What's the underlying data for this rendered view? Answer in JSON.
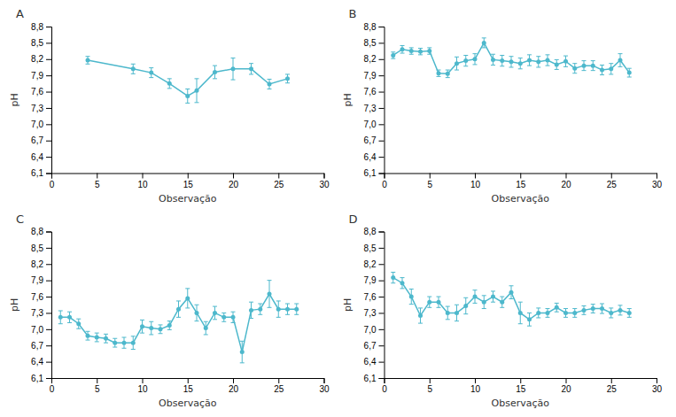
{
  "chart_data": [
    {
      "type": "line",
      "title": "A",
      "xlabel": "Observação",
      "ylabel": "pH",
      "color": "#4db8cc",
      "marker": "circle",
      "line_style": "solid",
      "grid": false,
      "xlim": [
        0,
        30
      ],
      "ylim": [
        6.1,
        8.8
      ],
      "xticks": [
        0,
        5,
        10,
        15,
        20,
        25,
        30
      ],
      "yticks": [
        {
          "value": 6.1,
          "label": "6,1"
        },
        {
          "value": 6.4,
          "label": "6,4"
        },
        {
          "value": 6.7,
          "label": "6,7"
        },
        {
          "value": 7.0,
          "label": "7,0"
        },
        {
          "value": 7.3,
          "label": "7,3"
        },
        {
          "value": 7.6,
          "label": "7,6"
        },
        {
          "value": 7.9,
          "label": "7,9"
        },
        {
          "value": 8.2,
          "label": "8,2"
        },
        {
          "value": 8.5,
          "label": "8,5"
        },
        {
          "value": 8.8,
          "label": "8,8"
        }
      ],
      "x": [
        4,
        9,
        11,
        13,
        15,
        16,
        18,
        20,
        22,
        24,
        26
      ],
      "values": [
        8.18,
        8.02,
        7.95,
        7.75,
        7.52,
        7.62,
        7.96,
        8.02,
        8.02,
        7.74,
        7.84
      ],
      "errors": [
        0.07,
        0.09,
        0.09,
        0.09,
        0.13,
        0.22,
        0.12,
        0.2,
        0.1,
        0.09,
        0.08
      ]
    },
    {
      "type": "line",
      "title": "B",
      "xlabel": "Observação",
      "ylabel": "pH",
      "color": "#4db8cc",
      "marker": "circle",
      "line_style": "solid",
      "grid": false,
      "xlim": [
        0,
        30
      ],
      "ylim": [
        6.1,
        8.8
      ],
      "xticks": [
        0,
        5,
        10,
        15,
        20,
        25,
        30
      ],
      "yticks": [
        {
          "value": 6.1,
          "label": "6,1"
        },
        {
          "value": 6.4,
          "label": "6,4"
        },
        {
          "value": 6.7,
          "label": "6,7"
        },
        {
          "value": 7.0,
          "label": "7,0"
        },
        {
          "value": 7.3,
          "label": "7,3"
        },
        {
          "value": 7.6,
          "label": "7,6"
        },
        {
          "value": 7.9,
          "label": "7,9"
        },
        {
          "value": 8.2,
          "label": "8,2"
        },
        {
          "value": 8.5,
          "label": "8,5"
        },
        {
          "value": 8.8,
          "label": "8,8"
        }
      ],
      "x": [
        1,
        2,
        3,
        4,
        5,
        6,
        7,
        8,
        9,
        10,
        11,
        12,
        13,
        14,
        15,
        16,
        17,
        18,
        19,
        20,
        21,
        22,
        23,
        24,
        25,
        26,
        27
      ],
      "values": [
        8.27,
        8.38,
        8.35,
        8.34,
        8.35,
        7.94,
        7.93,
        8.12,
        8.17,
        8.2,
        8.5,
        8.19,
        8.17,
        8.15,
        8.12,
        8.18,
        8.15,
        8.18,
        8.1,
        8.16,
        8.03,
        8.08,
        8.08,
        8.0,
        8.02,
        8.18,
        7.95
      ],
      "errors": [
        0.06,
        0.07,
        0.06,
        0.06,
        0.06,
        0.06,
        0.07,
        0.12,
        0.1,
        0.1,
        0.09,
        0.1,
        0.1,
        0.1,
        0.1,
        0.1,
        0.1,
        0.1,
        0.09,
        0.1,
        0.09,
        0.09,
        0.09,
        0.09,
        0.1,
        0.12,
        0.08
      ]
    },
    {
      "type": "line",
      "title": "C",
      "xlabel": "Observação",
      "ylabel": "pH",
      "color": "#4db8cc",
      "marker": "circle",
      "line_style": "solid",
      "grid": false,
      "xlim": [
        0,
        30
      ],
      "ylim": [
        6.1,
        8.8
      ],
      "xticks": [
        0,
        5,
        10,
        15,
        20,
        25,
        30
      ],
      "yticks": [
        {
          "value": 6.1,
          "label": "6,1"
        },
        {
          "value": 6.4,
          "label": "6,4"
        },
        {
          "value": 6.7,
          "label": "6,7"
        },
        {
          "value": 7.0,
          "label": "7,0"
        },
        {
          "value": 7.3,
          "label": "7,3"
        },
        {
          "value": 7.6,
          "label": "7,6"
        },
        {
          "value": 7.9,
          "label": "7,9"
        },
        {
          "value": 8.2,
          "label": "8,2"
        },
        {
          "value": 8.5,
          "label": "8,5"
        },
        {
          "value": 8.8,
          "label": "8,8"
        }
      ],
      "x": [
        1,
        2,
        3,
        4,
        5,
        6,
        7,
        8,
        9,
        10,
        11,
        12,
        13,
        14,
        15,
        16,
        17,
        18,
        19,
        20,
        21,
        22,
        23,
        24,
        25,
        26,
        27
      ],
      "values": [
        7.22,
        7.22,
        7.1,
        6.88,
        6.85,
        6.83,
        6.75,
        6.75,
        6.75,
        7.05,
        7.02,
        7.0,
        7.07,
        7.37,
        7.57,
        7.3,
        7.02,
        7.3,
        7.22,
        7.22,
        6.58,
        7.35,
        7.37,
        7.65,
        7.37,
        7.37,
        7.37
      ],
      "errors": [
        0.12,
        0.1,
        0.09,
        0.08,
        0.08,
        0.08,
        0.08,
        0.1,
        0.12,
        0.12,
        0.12,
        0.08,
        0.08,
        0.15,
        0.18,
        0.15,
        0.12,
        0.12,
        0.08,
        0.1,
        0.2,
        0.15,
        0.1,
        0.25,
        0.15,
        0.1,
        0.1
      ]
    },
    {
      "type": "line",
      "title": "D",
      "xlabel": "Observação",
      "ylabel": "pH",
      "color": "#4db8cc",
      "marker": "circle",
      "line_style": "solid",
      "grid": false,
      "xlim": [
        0,
        30
      ],
      "ylim": [
        6.1,
        8.8
      ],
      "xticks": [
        0,
        5,
        10,
        15,
        20,
        25,
        30
      ],
      "yticks": [
        {
          "value": 6.1,
          "label": "6,1"
        },
        {
          "value": 6.4,
          "label": "6,4"
        },
        {
          "value": 6.7,
          "label": "6,7"
        },
        {
          "value": 7.0,
          "label": "7,0"
        },
        {
          "value": 7.3,
          "label": "7,3"
        },
        {
          "value": 7.6,
          "label": "7,6"
        },
        {
          "value": 7.9,
          "label": "7,9"
        },
        {
          "value": 8.2,
          "label": "8,2"
        },
        {
          "value": 8.5,
          "label": "8,5"
        },
        {
          "value": 8.8,
          "label": "8,8"
        }
      ],
      "x": [
        1,
        2,
        3,
        4,
        5,
        6,
        7,
        8,
        9,
        10,
        11,
        12,
        13,
        14,
        15,
        16,
        17,
        18,
        19,
        20,
        21,
        22,
        23,
        24,
        25,
        26,
        27
      ],
      "values": [
        7.95,
        7.85,
        7.6,
        7.25,
        7.5,
        7.5,
        7.3,
        7.3,
        7.43,
        7.6,
        7.5,
        7.6,
        7.5,
        7.68,
        7.3,
        7.18,
        7.3,
        7.3,
        7.4,
        7.3,
        7.3,
        7.35,
        7.38,
        7.38,
        7.3,
        7.35,
        7.3
      ],
      "errors": [
        0.1,
        0.1,
        0.14,
        0.14,
        0.1,
        0.1,
        0.12,
        0.15,
        0.15,
        0.12,
        0.12,
        0.1,
        0.1,
        0.12,
        0.2,
        0.12,
        0.09,
        0.08,
        0.08,
        0.08,
        0.08,
        0.08,
        0.08,
        0.09,
        0.09,
        0.09,
        0.08
      ]
    }
  ]
}
